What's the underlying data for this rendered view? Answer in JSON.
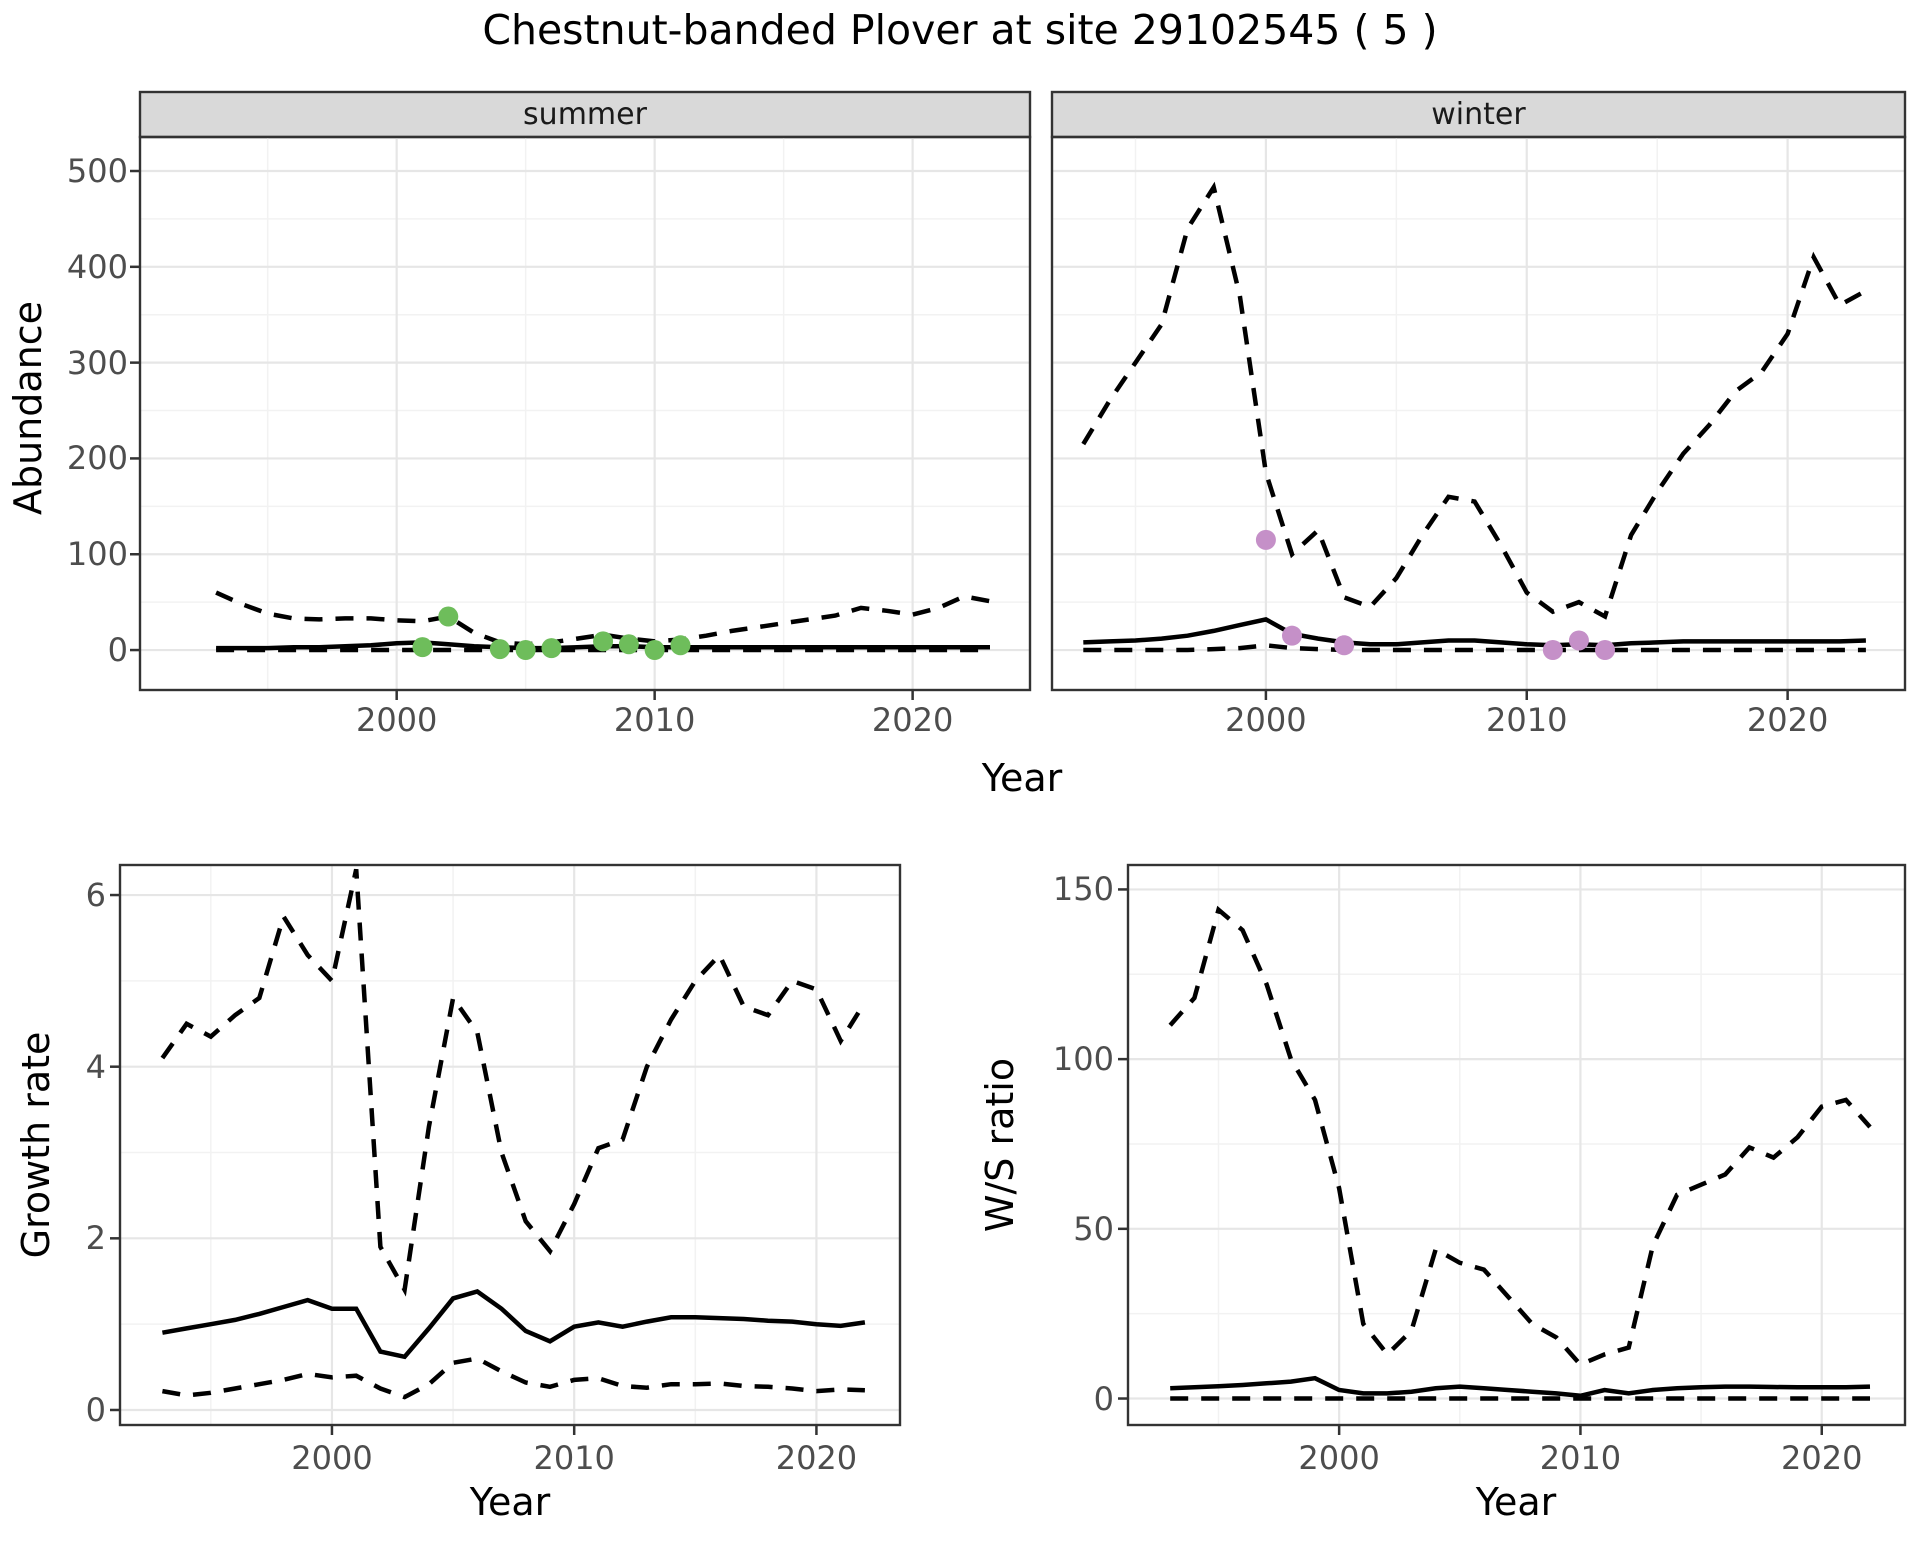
{
  "title": "Chestnut-banded Plover at site 29102545 ( 5 )",
  "axis_titles": {
    "top_y": "Abundance",
    "top_x": "Year",
    "growth_y": "Growth rate",
    "growth_x": "Year",
    "ws_y": "W/S ratio",
    "ws_x": "Year"
  },
  "colors": {
    "summer_points": "#6EBD5B",
    "winter_points": "#C590C8",
    "line": "#000000",
    "strip_bg": "#D9D9D9",
    "panel_border": "#333333",
    "grid_major": "#E6E6E6",
    "grid_minor": "#F2F2F2",
    "tick_text": "#4D4D4D"
  },
  "chart_data": [
    {
      "id": "abundance-summer",
      "type": "line",
      "facet": "summer",
      "xlabel": "Year",
      "ylabel": "Abundance",
      "xlim": [
        1990.05,
        2024.55
      ],
      "ylim": [
        -41.7,
        535.5
      ],
      "xticks": [
        2000,
        2010,
        2020
      ],
      "xminor": [
        1995,
        2005,
        2015
      ],
      "yticks": [
        0,
        100,
        200,
        300,
        400,
        500
      ],
      "yminor": [
        50,
        150,
        250,
        350,
        450
      ],
      "grid": true,
      "legend": "none",
      "x": [
        1993,
        1994,
        1995,
        1996,
        1997,
        1998,
        1999,
        2000,
        2001,
        2002,
        2003,
        2004,
        2005,
        2006,
        2007,
        2008,
        2009,
        2010,
        2011,
        2012,
        2013,
        2014,
        2015,
        2016,
        2017,
        2018,
        2019,
        2020,
        2021,
        2022,
        2023
      ],
      "series": [
        {
          "name": "upper_ci",
          "style": "dashed",
          "values": [
            60,
            48,
            38,
            33,
            32,
            33,
            33,
            31,
            30,
            35,
            18,
            8,
            6,
            8,
            12,
            16,
            12,
            9,
            11,
            15,
            20,
            24,
            28,
            32,
            36,
            44,
            41,
            37,
            44,
            56,
            51
          ]
        },
        {
          "name": "median",
          "style": "solid",
          "values": [
            2,
            2,
            2,
            3,
            3,
            4,
            5,
            7,
            8,
            6,
            4,
            3,
            2,
            2,
            3,
            4,
            4,
            3,
            3,
            3,
            3,
            3,
            3,
            3,
            3,
            3,
            3,
            3,
            3,
            3,
            3
          ]
        },
        {
          "name": "lower_ci",
          "style": "dashed",
          "values": [
            0,
            0,
            0,
            0,
            0,
            0,
            0,
            0,
            0,
            0,
            0,
            0,
            0,
            0,
            0,
            0,
            0,
            0,
            0,
            0,
            0,
            0,
            0,
            0,
            0,
            0,
            0,
            0,
            0,
            0,
            0
          ]
        }
      ],
      "points": {
        "name": "observed_counts",
        "color": "#6EBD5B",
        "data": [
          [
            2001,
            3
          ],
          [
            2002,
            35
          ],
          [
            2004,
            1
          ],
          [
            2005,
            0
          ],
          [
            2006,
            2
          ],
          [
            2008,
            9
          ],
          [
            2009,
            6
          ],
          [
            2010,
            0
          ],
          [
            2011,
            5
          ]
        ]
      }
    },
    {
      "id": "abundance-winter",
      "type": "line",
      "facet": "winter",
      "xlabel": "Year",
      "ylabel": "Abundance",
      "xlim": [
        1991.8,
        2024.5
      ],
      "ylim": [
        -41.7,
        535.5
      ],
      "xticks": [
        2000,
        2010,
        2020
      ],
      "xminor": [
        1995,
        2005,
        2015
      ],
      "yticks": [
        0,
        100,
        200,
        300,
        400,
        500
      ],
      "yminor": [
        50,
        150,
        250,
        350,
        450
      ],
      "grid": true,
      "legend": "none",
      "x": [
        1993,
        1994,
        1995,
        1996,
        1997,
        1998,
        1999,
        2000,
        2001,
        2002,
        2003,
        2004,
        2005,
        2006,
        2007,
        2008,
        2009,
        2010,
        2011,
        2012,
        2013,
        2014,
        2015,
        2016,
        2017,
        2018,
        2019,
        2020,
        2021,
        2022,
        2023
      ],
      "series": [
        {
          "name": "upper_ci",
          "style": "dashed",
          "values": [
            215,
            260,
            300,
            340,
            440,
            483,
            370,
            185,
            100,
            125,
            55,
            45,
            75,
            120,
            160,
            155,
            110,
            60,
            40,
            50,
            35,
            120,
            165,
            205,
            235,
            270,
            290,
            330,
            410,
            360,
            375
          ]
        },
        {
          "name": "median",
          "style": "solid",
          "values": [
            8,
            9,
            10,
            12,
            15,
            20,
            26,
            32,
            17,
            12,
            8,
            6,
            6,
            8,
            10,
            10,
            8,
            6,
            5,
            6,
            5,
            7,
            8,
            9,
            9,
            9,
            9,
            9,
            9,
            9,
            10
          ]
        },
        {
          "name": "lower_ci",
          "style": "dashed",
          "values": [
            0,
            0,
            0,
            0,
            0,
            1,
            2,
            5,
            2,
            1,
            0,
            0,
            0,
            0,
            0,
            0,
            0,
            0,
            0,
            0,
            0,
            0,
            0,
            0,
            0,
            0,
            0,
            0,
            0,
            0,
            0
          ]
        }
      ],
      "points": {
        "name": "observed_counts",
        "color": "#C590C8",
        "data": [
          [
            2000,
            115
          ],
          [
            2001,
            15
          ],
          [
            2003,
            5
          ],
          [
            2011,
            0
          ],
          [
            2012,
            10
          ],
          [
            2013,
            0
          ]
        ]
      }
    },
    {
      "id": "growth-rate",
      "type": "line",
      "facet": null,
      "xlabel": "Year",
      "ylabel": "Growth rate",
      "xlim": [
        1991.25,
        2023.45
      ],
      "ylim": [
        -0.175,
        6.35
      ],
      "xticks": [
        2000,
        2010,
        2020
      ],
      "xminor": [
        1995,
        2005,
        2015
      ],
      "yticks": [
        0,
        2,
        4,
        6
      ],
      "yminor": [
        1,
        3,
        5
      ],
      "grid": true,
      "legend": "none",
      "x": [
        1993,
        1994,
        1995,
        1996,
        1997,
        1998,
        1999,
        2000,
        2001,
        2002,
        2003,
        2004,
        2005,
        2006,
        2007,
        2008,
        2009,
        2010,
        2011,
        2012,
        2013,
        2014,
        2015,
        2016,
        2017,
        2018,
        2019,
        2020,
        2021,
        2022
      ],
      "series": [
        {
          "name": "upper_ci",
          "style": "dashed",
          "values": [
            4.1,
            4.5,
            4.35,
            4.6,
            4.8,
            5.75,
            5.3,
            5.0,
            6.3,
            1.9,
            1.4,
            3.3,
            4.8,
            4.4,
            3.0,
            2.2,
            1.85,
            2.4,
            3.05,
            3.15,
            4.0,
            4.55,
            5.0,
            5.3,
            4.7,
            4.6,
            5.0,
            4.9,
            4.3,
            4.75
          ]
        },
        {
          "name": "median",
          "style": "solid",
          "values": [
            0.9,
            0.95,
            1.0,
            1.05,
            1.12,
            1.2,
            1.28,
            1.18,
            1.18,
            0.68,
            0.62,
            0.95,
            1.3,
            1.38,
            1.18,
            0.92,
            0.8,
            0.97,
            1.02,
            0.97,
            1.03,
            1.08,
            1.08,
            1.07,
            1.06,
            1.04,
            1.03,
            1.0,
            0.98,
            1.02
          ]
        },
        {
          "name": "lower_ci",
          "style": "dashed",
          "values": [
            0.22,
            0.17,
            0.2,
            0.25,
            0.3,
            0.35,
            0.42,
            0.38,
            0.4,
            0.25,
            0.15,
            0.3,
            0.55,
            0.6,
            0.45,
            0.32,
            0.27,
            0.35,
            0.37,
            0.28,
            0.26,
            0.3,
            0.3,
            0.31,
            0.28,
            0.27,
            0.25,
            0.22,
            0.24,
            0.23
          ]
        }
      ],
      "points": null
    },
    {
      "id": "ws-ratio",
      "type": "line",
      "facet": null,
      "xlabel": "Year",
      "ylabel": "W/S ratio",
      "xlim": [
        1991.25,
        2023.45
      ],
      "ylim": [
        -7.8,
        157.2
      ],
      "xticks": [
        2000,
        2010,
        2020
      ],
      "xminor": [
        1995,
        2005,
        2015
      ],
      "yticks": [
        0,
        50,
        100,
        150
      ],
      "yminor": [
        25,
        75,
        125
      ],
      "grid": true,
      "legend": "none",
      "x": [
        1993,
        1994,
        1995,
        1996,
        1997,
        1998,
        1999,
        2000,
        2001,
        2002,
        2003,
        2004,
        2005,
        2006,
        2007,
        2008,
        2009,
        2010,
        2011,
        2012,
        2013,
        2014,
        2015,
        2016,
        2017,
        2018,
        2019,
        2020,
        2021,
        2022
      ],
      "series": [
        {
          "name": "upper_ci",
          "style": "dashed",
          "values": [
            110,
            118,
            144,
            138,
            122,
            100,
            88,
            62,
            22,
            13,
            20,
            44,
            40,
            38,
            30,
            22,
            18,
            10,
            13,
            15,
            45,
            60,
            63,
            66,
            74,
            71,
            77,
            86,
            88,
            80
          ]
        },
        {
          "name": "median",
          "style": "solid",
          "values": [
            3,
            3.3,
            3.6,
            4,
            4.5,
            5,
            6,
            2.5,
            1.5,
            1.5,
            2,
            3,
            3.5,
            3,
            2.5,
            2,
            1.5,
            0.8,
            2.5,
            1.5,
            2.5,
            3,
            3.3,
            3.5,
            3.5,
            3.4,
            3.3,
            3.3,
            3.3,
            3.5
          ]
        },
        {
          "name": "lower_ci",
          "style": "dashed",
          "values": [
            0,
            0,
            0,
            0,
            0,
            0,
            0,
            0,
            0,
            0,
            0,
            0,
            0,
            0,
            0,
            0,
            0,
            0,
            0,
            0,
            0,
            0,
            0,
            0,
            0,
            0,
            0,
            0,
            0,
            0
          ]
        }
      ],
      "points": null
    }
  ]
}
